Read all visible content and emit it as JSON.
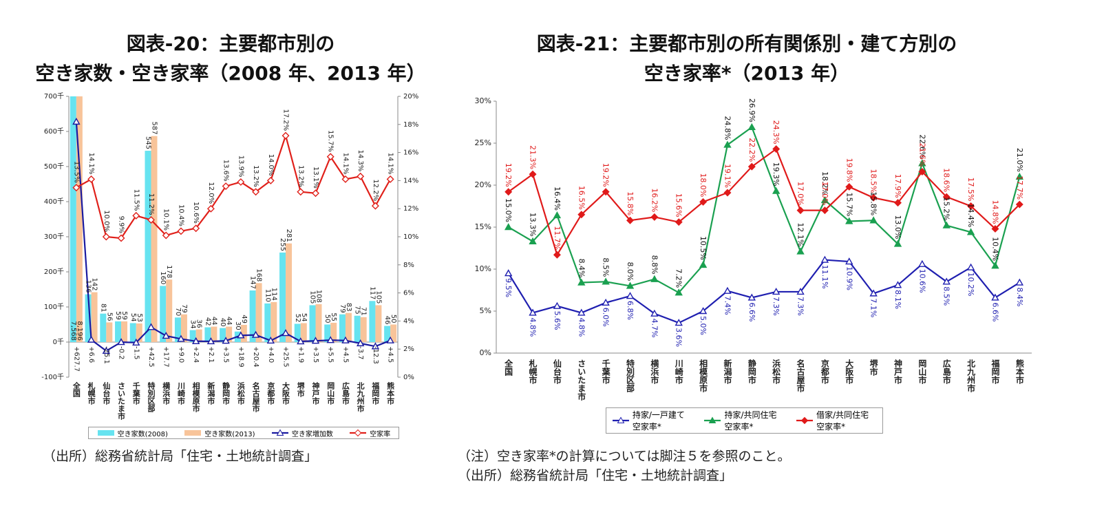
{
  "chart_data": [
    {
      "type": "bar",
      "title": [
        "図表-20：主要都市別の",
        "空き家数・空き家率（2008 年、2013 年）"
      ],
      "notes": [
        "（出所）総務省統計局「住宅・土地統計調査」"
      ],
      "categories": [
        "全国",
        "札幌市",
        "仙台市",
        "さいたま市",
        "千葉市",
        "特別区部",
        "横浜市",
        "川崎市",
        "相模原市",
        "新潟市",
        "静岡市",
        "浜松市",
        "名古屋市",
        "京都市",
        "大阪市",
        "堺市",
        "神戸市",
        "岡山市",
        "広島市",
        "北九州市",
        "福岡市",
        "熊本市"
      ],
      "ylim": [
        -100,
        700
      ],
      "yticks": [
        {
          "value": -100,
          "label": "-100千"
        },
        {
          "value": 0,
          "label": "0千"
        },
        {
          "value": 100,
          "label": "100千"
        },
        {
          "value": 200,
          "label": "200千"
        },
        {
          "value": 300,
          "label": "300千"
        },
        {
          "value": 400,
          "label": "400千"
        },
        {
          "value": 500,
          "label": "500千"
        },
        {
          "value": 600,
          "label": "600千"
        },
        {
          "value": 700,
          "label": "700千"
        }
      ],
      "y2lim": [
        0,
        20
      ],
      "y2ticks": [
        {
          "value": 0,
          "label": "0%"
        },
        {
          "value": 2,
          "label": "2%"
        },
        {
          "value": 4,
          "label": "4%"
        },
        {
          "value": 6,
          "label": "6%"
        },
        {
          "value": 8,
          "label": "8%"
        },
        {
          "value": 10,
          "label": "10%"
        },
        {
          "value": 12,
          "label": "12%"
        },
        {
          "value": 14,
          "label": "14%"
        },
        {
          "value": 16,
          "label": "16%"
        },
        {
          "value": 18,
          "label": "18%"
        },
        {
          "value": 20,
          "label": "20%"
        }
      ],
      "grid": false,
      "legend": "bottom",
      "series": [
        {
          "name": "空き家数(2008)",
          "type": "bar",
          "color": "#66e3f0",
          "label_color": "#222222",
          "values": [
            7568,
            136,
            81,
            59,
            54,
            545,
            160,
            70,
            34,
            42,
            40,
            30,
            147,
            110,
            255,
            52,
            105,
            50,
            79,
            75,
            117,
            46
          ],
          "value_labels": [
            "7,568",
            "136",
            "81",
            "59",
            "54",
            "545",
            "160",
            "70",
            "34",
            "42",
            "40",
            "30",
            "147",
            "110",
            "255",
            "52",
            "105",
            "50",
            "79",
            "75",
            "117",
            "46"
          ]
        },
        {
          "name": "空き家数(2013)",
          "type": "bar",
          "color": "#f8c49a",
          "label_color": "#222222",
          "values": [
            8196,
            142,
            56,
            59,
            53,
            587,
            178,
            79,
            36,
            44,
            44,
            49,
            168,
            114,
            281,
            54,
            108,
            55,
            83,
            71,
            105,
            50
          ],
          "value_labels": [
            "8,196",
            "142",
            "56",
            "59",
            "53",
            "587",
            "178",
            "79",
            "36",
            "44",
            "44",
            "49",
            "168",
            "114",
            "281",
            "54",
            "108",
            "55",
            "83",
            "71",
            "105",
            "50"
          ]
        },
        {
          "name": "空き家増加数",
          "type": "line",
          "marker": "triangle-open",
          "color": "#1a1aa0",
          "label_color": "#222222",
          "values": [
            627.7,
            6.6,
            -25.1,
            -0.2,
            -1.5,
            42.5,
            17.7,
            9.0,
            2.4,
            2.1,
            3.5,
            18.9,
            20.4,
            4.0,
            25.5,
            1.9,
            3.5,
            5.5,
            4.5,
            -3.7,
            -12.3,
            4.5
          ],
          "value_labels": [
            "+627.7",
            "+6.6",
            "-25.1",
            "-0.2",
            "-1.5",
            "+42.5",
            "+17.7",
            "+9.0",
            "+2.4",
            "+2.1",
            "+3.5",
            "+18.9",
            "+20.4",
            "+4.0",
            "+25.5",
            "+1.9",
            "+3.5",
            "+5.5",
            "+4.5",
            "-3.7",
            "-12.3",
            "+4.5"
          ]
        },
        {
          "name": "空家率",
          "type": "line",
          "axis": "y2",
          "marker": "diamond-open",
          "color": "#e0201a",
          "label_color": "#222222",
          "values": [
            13.5,
            14.1,
            10.0,
            9.9,
            11.5,
            11.2,
            10.1,
            10.4,
            10.6,
            12.0,
            13.6,
            13.9,
            13.2,
            14.0,
            17.2,
            13.2,
            13.1,
            15.7,
            14.1,
            14.3,
            12.2,
            14.1
          ],
          "value_labels": [
            "13.5%",
            "14.1%",
            "10.0%",
            "9.9%",
            "11.5%",
            "11.2%",
            "10.1%",
            "10.4%",
            "10.6%",
            "12.0%",
            "13.6%",
            "13.9%",
            "13.2%",
            "14.0%",
            "17.2%",
            "13.2%",
            "13.1%",
            "15.7%",
            "14.1%",
            "14.3%",
            "12.2%",
            "14.1%"
          ]
        }
      ]
    },
    {
      "type": "line",
      "title": [
        "図表-21：主要都市別の所有関係別・建て方別の",
        "空き家率*（2013 年）"
      ],
      "notes": [
        "（注）空き家率*の計算については脚注５を参照のこと。",
        "（出所）総務省統計局「住宅・土地統計調査」"
      ],
      "categories": [
        "全国",
        "札幌市",
        "仙台市",
        "さいたま市",
        "千葉市",
        "特別区部",
        "横浜市",
        "川崎市",
        "相模原市",
        "新潟市",
        "静岡市",
        "浜松市",
        "名古屋市",
        "京都市",
        "大阪市",
        "堺市",
        "神戸市",
        "岡山市",
        "広島市",
        "北九州市",
        "福岡市",
        "熊本市"
      ],
      "ylim": [
        0,
        30
      ],
      "yticks": [
        {
          "value": 0,
          "label": "0%"
        },
        {
          "value": 5,
          "label": "5%"
        },
        {
          "value": 10,
          "label": "10%"
        },
        {
          "value": 15,
          "label": "15%"
        },
        {
          "value": 20,
          "label": "20%"
        },
        {
          "value": 25,
          "label": "25%"
        },
        {
          "value": 30,
          "label": "30%"
        }
      ],
      "grid": false,
      "legend": "bottom",
      "series": [
        {
          "name": "持家/一戸建て空家率*",
          "marker": "triangle-open",
          "color": "#1f1fb0",
          "label_color": "#1f1fb0",
          "values": [
            9.5,
            4.8,
            5.6,
            4.8,
            6.0,
            6.8,
            4.7,
            3.6,
            5.0,
            7.4,
            6.6,
            7.3,
            7.3,
            11.1,
            10.9,
            7.1,
            8.1,
            10.6,
            8.5,
            10.2,
            6.6,
            8.4
          ],
          "value_labels": [
            "9.5%",
            "4.8%",
            "5.6%",
            "4.8%",
            "6.0%",
            "6.8%",
            "4.7%",
            "3.6%",
            "5.0%",
            "7.4%",
            "6.6%",
            "7.3%",
            "7.3%",
            "11.1%",
            "10.9%",
            "7.1%",
            "8.1%",
            "10.6%",
            "8.5%",
            "10.2%",
            "6.6%",
            "8.4%"
          ]
        },
        {
          "name": "持家/共同住宅空家率*",
          "marker": "triangle",
          "color": "#1aa050",
          "label_color": "#111111",
          "values": [
            15.0,
            13.3,
            16.4,
            8.4,
            8.5,
            8.0,
            8.8,
            7.2,
            10.5,
            24.8,
            26.9,
            19.3,
            12.1,
            18.2,
            15.7,
            15.8,
            13.0,
            22.6,
            15.2,
            14.4,
            10.4,
            21.0
          ],
          "value_labels": [
            "15.0%",
            "13.3%",
            "16.4%",
            "8.4%",
            "8.5%",
            "8.0%",
            "8.8%",
            "7.2%",
            "10.5%",
            "24.8%",
            "26.9%",
            "19.3%",
            "12.1%",
            "18.2%",
            "15.7%",
            "15.8%",
            "13.0%",
            "22.6%",
            "15.2%",
            "14.4%",
            "10.4%",
            "21.0%"
          ]
        },
        {
          "name": "借家/共同住宅空家率*",
          "marker": "diamond",
          "color": "#e01a1a",
          "label_color": "#e01a1a",
          "values": [
            19.2,
            21.3,
            11.7,
            16.5,
            19.2,
            15.8,
            16.2,
            15.6,
            18.0,
            19.1,
            22.2,
            24.3,
            17.0,
            17.0,
            19.8,
            18.5,
            17.9,
            21.6,
            18.6,
            17.5,
            14.8,
            17.7
          ],
          "value_labels": [
            "19.2%",
            "21.3%",
            "11.7%",
            "16.5%",
            "19.2%",
            "15.8%",
            "16.2%",
            "15.6%",
            "18.0%",
            "19.1%",
            "22.2%",
            "24.3%",
            "17.0%",
            "17.0%",
            "19.8%",
            "18.5%",
            "17.9%",
            "21.6%",
            "18.6%",
            "17.5%",
            "14.8%",
            "17.7%"
          ]
        }
      ]
    }
  ]
}
